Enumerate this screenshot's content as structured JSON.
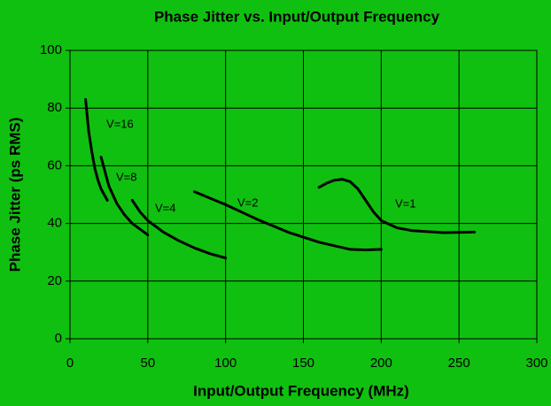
{
  "chart_data": {
    "type": "line",
    "title": "Phase Jitter vs. Input/Output Frequency",
    "x_label": "Input/Output Frequency (MHz)",
    "y_label": "Phase Jitter (ps RMS)",
    "background": "#10c010",
    "grid": true,
    "xlim": [
      0,
      300
    ],
    "xticks": [
      0,
      50,
      100,
      150,
      200,
      250,
      300
    ],
    "ylim": [
      0,
      100
    ],
    "yticks": [
      0,
      20,
      40,
      60,
      80,
      100
    ],
    "series": [
      {
        "name": "V=16",
        "color": "#000000",
        "x": [
          10,
          12,
          14,
          16,
          18,
          20,
          22,
          24
        ],
        "values": [
          83,
          72,
          65,
          59,
          55,
          52,
          50,
          48
        ]
      },
      {
        "name": "V=8",
        "color": "#000000",
        "x": [
          20,
          25,
          30,
          35,
          40,
          45,
          50
        ],
        "values": [
          63,
          53,
          47,
          43,
          40,
          38,
          36
        ]
      },
      {
        "name": "V=4",
        "color": "#000000",
        "x": [
          40,
          45,
          50,
          60,
          70,
          80,
          90,
          100
        ],
        "values": [
          48,
          44,
          41,
          37,
          34,
          31.5,
          29.5,
          28
        ]
      },
      {
        "name": "V=2",
        "color": "#000000",
        "x": [
          80,
          100,
          120,
          140,
          160,
          180,
          190,
          200
        ],
        "values": [
          51,
          46.5,
          41.5,
          37,
          33.5,
          31,
          30.8,
          31
        ]
      },
      {
        "name": "V=1",
        "color": "#000000",
        "x": [
          160,
          165,
          170,
          175,
          180,
          185,
          190,
          195,
          200,
          210,
          220,
          240,
          260
        ],
        "values": [
          52.5,
          54,
          55,
          55.3,
          54.5,
          52,
          48,
          44,
          41,
          38.5,
          37.5,
          36.8,
          37
        ]
      }
    ]
  }
}
